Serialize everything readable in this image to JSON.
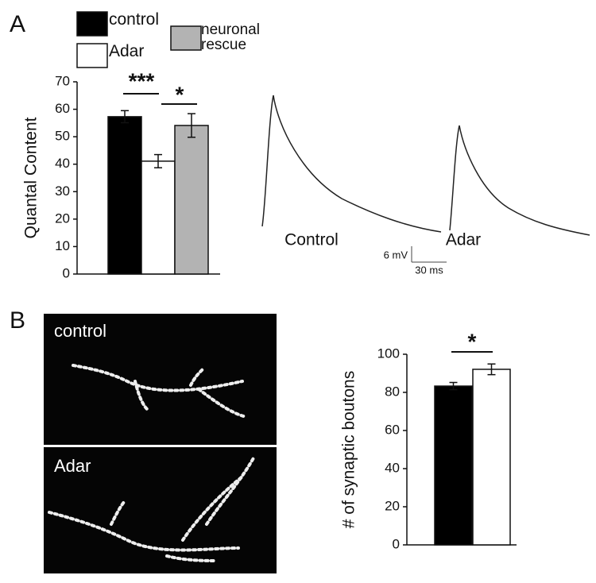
{
  "panel_labels": [
    "A",
    "B"
  ],
  "chart_data": [
    {
      "type": "bar",
      "ylabel": "Quantal Content",
      "categories": [
        null
      ],
      "ylim": [
        0,
        70
      ],
      "yticks": [
        0,
        10,
        20,
        30,
        40,
        50,
        60,
        70
      ],
      "series": [
        {
          "name": "control",
          "color": "#000000",
          "values": [
            57.3
          ],
          "errors": [
            2.2
          ]
        },
        {
          "name": "Adar",
          "color": "#ffffff",
          "values": [
            41.1
          ],
          "errors": [
            2.4
          ]
        },
        {
          "name": "neuronal rescue",
          "color": "#b3b3b3",
          "values": [
            54.1
          ],
          "errors": [
            4.3
          ]
        }
      ],
      "annotations": [
        "***",
        "*"
      ]
    },
    {
      "type": "bar",
      "ylabel": "# of synaptic boutons",
      "categories": [
        null
      ],
      "ylim": [
        0,
        100
      ],
      "yticks": [
        0,
        20,
        40,
        60,
        80,
        100
      ],
      "series": [
        {
          "color": "#000000",
          "values": [
            83.3
          ],
          "errors": [
            1.9
          ]
        },
        {
          "color": "#ffffff",
          "values": [
            92.1
          ],
          "errors": [
            2.8
          ]
        }
      ],
      "annotations": [
        "*"
      ]
    }
  ],
  "traces": {
    "labels": [
      "Control",
      "Adar"
    ],
    "scale_bar": [
      "6 mV",
      "30 ms"
    ]
  },
  "images": [
    "control",
    "Adar"
  ]
}
